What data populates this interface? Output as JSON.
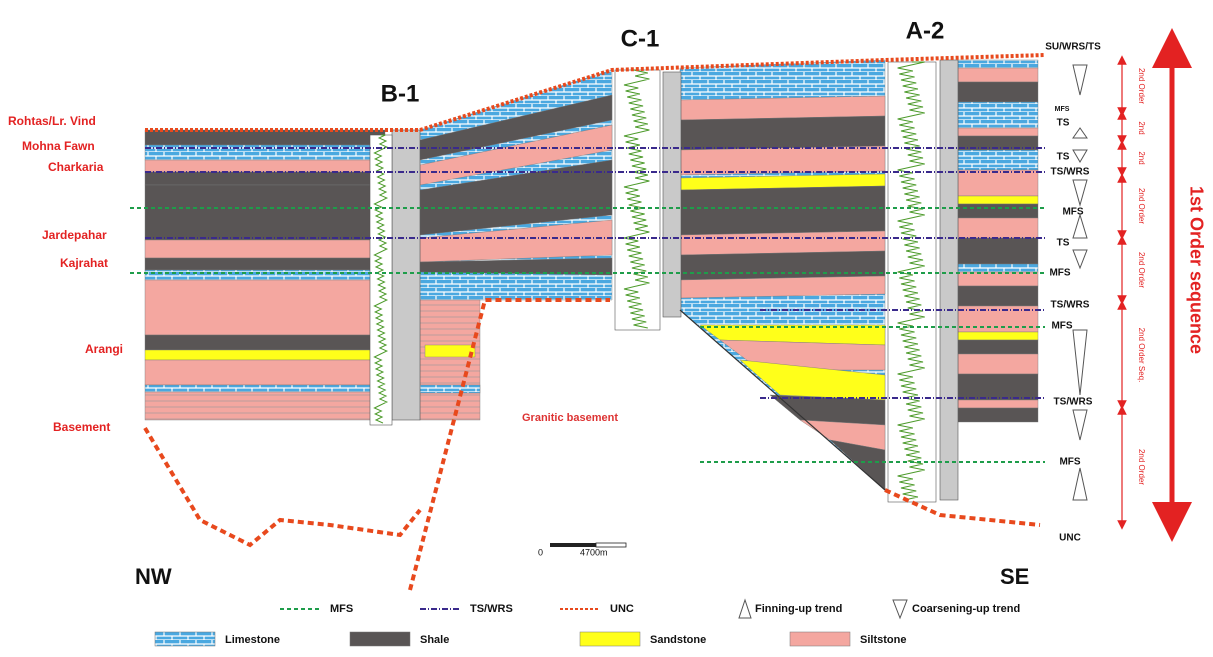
{
  "wells": [
    "B-1",
    "C-1",
    "A-2"
  ],
  "formations": [
    "Rohtas/Lr. Vind",
    "Mohna Fawn",
    "Charkaria",
    "Jardepahar",
    "Kajrahat",
    "Arangi",
    "Basement"
  ],
  "basement_label": "Granitic basement",
  "directions": [
    "NW",
    "SE"
  ],
  "scale": [
    "0",
    "4700m"
  ],
  "surfaces": [
    "SU/WRS/TS",
    "MFS",
    "TS",
    "TS",
    "TS/WRS",
    "MFS",
    "TS",
    "MFS",
    "TS/WRS",
    "MFS",
    "TS/WRS",
    "MFS",
    "UNC"
  ],
  "second_order": [
    "2nd Order",
    "2nd",
    "2nd",
    "2nd Order",
    "2nd Order",
    "2nd Order Seq.",
    "2nd Order"
  ],
  "first_order": "1st Order sequence",
  "legend": {
    "lines": [
      "MFS",
      "TS/WRS",
      "UNC"
    ],
    "trends": [
      "Finning-up trend",
      "Coarsening-up trend"
    ],
    "lithology": [
      "Limestone",
      "Shale",
      "Sandstone",
      "Siltstone"
    ]
  }
}
